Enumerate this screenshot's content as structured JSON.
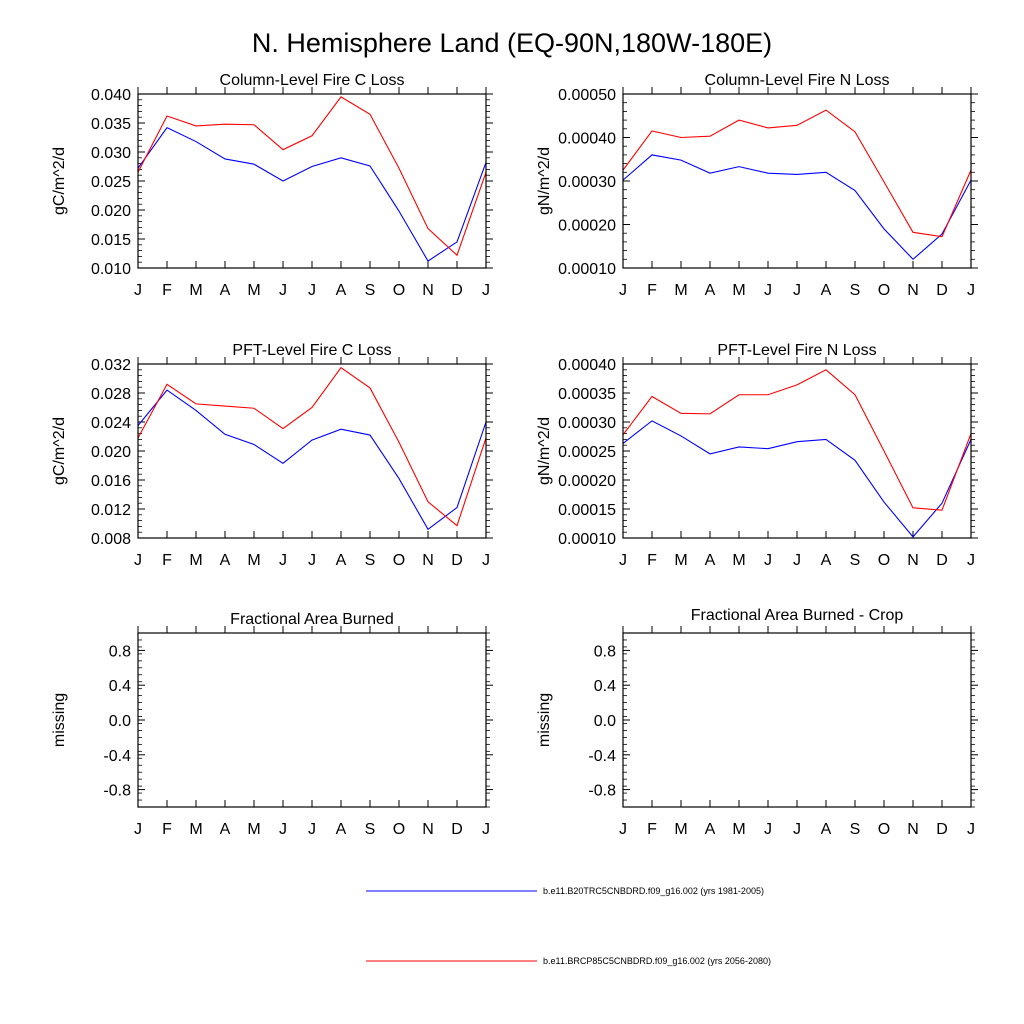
{
  "figure": {
    "title": "N. Hemisphere Land (EQ-90N,180W-180E)"
  },
  "legend": {
    "placement": "bottom-center",
    "entries": [
      {
        "name": "b.e11.B20TRC5CNBDRD.f09_g16.002 (yrs 1981-2005)",
        "color": "#0000ff"
      },
      {
        "name": "b.e11.BRCP85C5CNBDRD.f09_g16.002 (yrs 2056-2080)",
        "color": "#ff0000"
      }
    ]
  },
  "chart_data": [
    {
      "type": "line",
      "title": "Column-Level Fire C Loss",
      "ylabel": "gC/m^2/d",
      "categories": [
        "J",
        "F",
        "M",
        "A",
        "M",
        "J",
        "J",
        "A",
        "S",
        "O",
        "N",
        "D",
        "J"
      ],
      "ylim": [
        0.01,
        0.04
      ],
      "yticks": [
        "0.010",
        "0.015",
        "0.020",
        "0.025",
        "0.030",
        "0.035",
        "0.040"
      ],
      "series": [
        {
          "color": "#0000ff",
          "values": [
            0.0272,
            0.0342,
            0.0318,
            0.0288,
            0.0279,
            0.025,
            0.0275,
            0.029,
            0.0276,
            0.0198,
            0.0112,
            0.0145,
            0.0282
          ]
        },
        {
          "color": "#ff0000",
          "values": [
            0.0265,
            0.0362,
            0.0345,
            0.0348,
            0.0347,
            0.0304,
            0.0328,
            0.0395,
            0.0365,
            0.0272,
            0.0168,
            0.0122,
            0.0265
          ]
        }
      ]
    },
    {
      "type": "line",
      "title": "Column-Level Fire N Loss",
      "ylabel": "gN/m^2/d",
      "categories": [
        "J",
        "F",
        "M",
        "A",
        "M",
        "J",
        "J",
        "A",
        "S",
        "O",
        "N",
        "D",
        "J"
      ],
      "ylim": [
        0.0001,
        0.0005
      ],
      "yticks": [
        "0.00010",
        "0.00020",
        "0.00030",
        "0.00040",
        "0.00050"
      ],
      "series": [
        {
          "color": "#0000ff",
          "values": [
            0.000302,
            0.00036,
            0.000348,
            0.000318,
            0.000333,
            0.000318,
            0.000315,
            0.00032,
            0.000278,
            0.00019,
            0.00012,
            0.000178,
            0.000302
          ]
        },
        {
          "color": "#ff0000",
          "values": [
            0.000325,
            0.000415,
            0.0004,
            0.000403,
            0.00044,
            0.000422,
            0.000428,
            0.000463,
            0.000413,
            0.000298,
            0.000182,
            0.000172,
            0.000325
          ]
        }
      ]
    },
    {
      "type": "line",
      "title": "PFT-Level Fire C Loss",
      "ylabel": "gC/m^2/d",
      "categories": [
        "J",
        "F",
        "M",
        "A",
        "M",
        "J",
        "J",
        "A",
        "S",
        "O",
        "N",
        "D",
        "J"
      ],
      "ylim": [
        0.008,
        0.032
      ],
      "yticks": [
        "0.008",
        "0.012",
        "0.016",
        "0.020",
        "0.024",
        "0.028",
        "0.032"
      ],
      "series": [
        {
          "color": "#0000ff",
          "values": [
            0.0235,
            0.0284,
            0.0256,
            0.0223,
            0.0209,
            0.0183,
            0.0215,
            0.023,
            0.0222,
            0.0162,
            0.0092,
            0.0122,
            0.024
          ]
        },
        {
          "color": "#ff0000",
          "values": [
            0.0218,
            0.0292,
            0.0265,
            0.0262,
            0.0259,
            0.0231,
            0.026,
            0.0315,
            0.0287,
            0.0212,
            0.013,
            0.0097,
            0.0218
          ]
        }
      ]
    },
    {
      "type": "line",
      "title": "PFT-Level Fire N Loss",
      "ylabel": "gN/m^2/d",
      "categories": [
        "J",
        "F",
        "M",
        "A",
        "M",
        "J",
        "J",
        "A",
        "S",
        "O",
        "N",
        "D",
        "J"
      ],
      "ylim": [
        0.0001,
        0.0004
      ],
      "yticks": [
        "0.00010",
        "0.00015",
        "0.00020",
        "0.00025",
        "0.00030",
        "0.00035",
        "0.00040"
      ],
      "series": [
        {
          "color": "#0000ff",
          "values": [
            0.000263,
            0.000302,
            0.000276,
            0.000245,
            0.000257,
            0.000254,
            0.000266,
            0.00027,
            0.000234,
            0.000162,
            0.000102,
            0.00016,
            0.00027
          ]
        },
        {
          "color": "#ff0000",
          "values": [
            0.000278,
            0.000344,
            0.000315,
            0.000314,
            0.000347,
            0.000347,
            0.000364,
            0.00039,
            0.000347,
            0.00025,
            0.000152,
            0.000148,
            0.00028
          ]
        }
      ]
    },
    {
      "type": "line",
      "title": "Fractional Area Burned",
      "ylabel": "missing",
      "categories": [
        "J",
        "F",
        "M",
        "A",
        "M",
        "J",
        "J",
        "A",
        "S",
        "O",
        "N",
        "D",
        "J"
      ],
      "ylim": [
        -1.0,
        1.0
      ],
      "yticks": [
        "-0.8",
        "-0.4",
        "0.0",
        "0.4",
        "0.8"
      ],
      "series": []
    },
    {
      "type": "line",
      "title": "Fractional Area Burned - Crop",
      "ylabel": "missing",
      "categories": [
        "J",
        "F",
        "M",
        "A",
        "M",
        "J",
        "J",
        "A",
        "S",
        "O",
        "N",
        "D",
        "J"
      ],
      "ylim": [
        -1.0,
        1.0
      ],
      "yticks": [
        "-0.8",
        "-0.4",
        "0.0",
        "0.4",
        "0.8"
      ],
      "series": []
    }
  ]
}
